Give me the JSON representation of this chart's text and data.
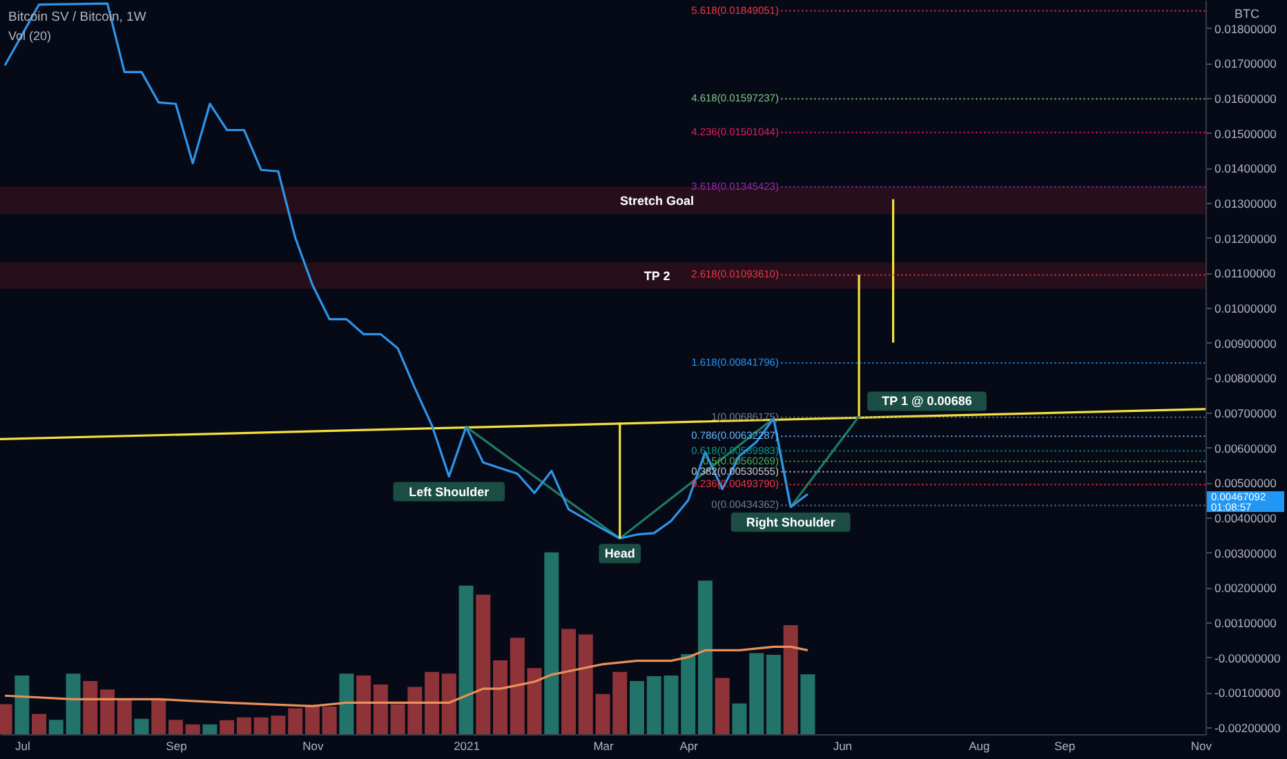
{
  "chart_data": {
    "type": "line",
    "title": "Bitcoin SV / Bitcoin, 1W",
    "annotations": [
      "Vol (20)",
      "BTC",
      "0.00467092 01:08:57",
      {
        "text": "Left Shoulder",
        "x": "2020-12-28",
        "y": 0.00517
      },
      {
        "text": "Head",
        "x": "2021-03-08",
        "y": 0.0034
      },
      {
        "text": "Right Shoulder",
        "x": "2021-05-17",
        "y": 0.0043
      },
      {
        "text": "TP 1 @ 0.00686",
        "x": "2021-06-14",
        "y": 0.00689
      }
    ],
    "x": [
      "2020-06-29",
      "2020-07-06",
      "2020-07-13",
      "2020-07-20",
      "2020-07-27",
      "2020-08-03",
      "2020-08-10",
      "2020-08-17",
      "2020-08-24",
      "2020-08-31",
      "2020-09-07",
      "2020-09-14",
      "2020-09-21",
      "2020-09-28",
      "2020-10-05",
      "2020-10-12",
      "2020-10-19",
      "2020-10-26",
      "2020-11-02",
      "2020-11-09",
      "2020-11-16",
      "2020-11-23",
      "2020-11-30",
      "2020-12-07",
      "2020-12-14",
      "2020-12-21",
      "2020-12-28",
      "2021-01-04",
      "2021-01-11",
      "2021-01-18",
      "2021-01-25",
      "2021-02-01",
      "2021-02-08",
      "2021-02-15",
      "2021-02-22",
      "2021-03-01",
      "2021-03-08",
      "2021-03-15",
      "2021-03-22",
      "2021-03-29",
      "2021-04-05",
      "2021-04-12",
      "2021-04-19",
      "2021-04-26",
      "2021-05-03",
      "2021-05-10",
      "2021-05-17",
      "2021-05-24"
    ],
    "xlim": [
      "2020-06-27",
      "2021-11-03"
    ],
    "xticks": [
      {
        "value": "2020-07-06",
        "label": "Jul"
      },
      {
        "value": "2020-09-07",
        "label": "Sep"
      },
      {
        "value": "2020-11-02",
        "label": "Nov"
      },
      {
        "value": "2021-01-04",
        "label": "2021"
      },
      {
        "value": "2021-03-01",
        "label": "Mar"
      },
      {
        "value": "2021-04-05",
        "label": "Apr"
      },
      {
        "value": "2021-06-07",
        "label": "Jun"
      },
      {
        "value": "2021-08-02",
        "label": "Aug"
      },
      {
        "value": "2021-09-06",
        "label": "Sep"
      },
      {
        "value": "2021-11-01",
        "label": "Nov"
      }
    ],
    "ylim": [
      -0.0022,
      0.0188
    ],
    "yticks": [
      {
        "value": 0.018,
        "label": "0.01800000"
      },
      {
        "value": 0.017,
        "label": "0.01700000"
      },
      {
        "value": 0.016,
        "label": "0.01600000"
      },
      {
        "value": 0.015,
        "label": "0.01500000"
      },
      {
        "value": 0.014,
        "label": "0.01400000"
      },
      {
        "value": 0.013,
        "label": "0.01300000"
      },
      {
        "value": 0.012,
        "label": "0.01200000"
      },
      {
        "value": 0.011,
        "label": "0.01100000"
      },
      {
        "value": 0.01,
        "label": "0.01000000"
      },
      {
        "value": 0.009,
        "label": "0.00900000"
      },
      {
        "value": 0.008,
        "label": "0.00800000"
      },
      {
        "value": 0.007,
        "label": "0.00700000"
      },
      {
        "value": 0.006,
        "label": "0.00600000"
      },
      {
        "value": 0.005,
        "label": "0.00500000"
      },
      {
        "value": 0.004,
        "label": "0.00400000"
      },
      {
        "value": 0.003,
        "label": "0.00300000"
      },
      {
        "value": 0.002,
        "label": "0.00200000"
      },
      {
        "value": 0.001,
        "label": "0.00100000"
      },
      {
        "value": 0,
        "label": "-0.00000000"
      },
      {
        "value": -0.001,
        "label": "-0.00100000"
      },
      {
        "value": -0.002,
        "label": "-0.00200000"
      }
    ],
    "bands": [
      {
        "axis": "y",
        "from": 0.01267,
        "to": 0.01346,
        "label": "Stretch Goal",
        "color": "#2a0f1c"
      },
      {
        "axis": "y",
        "from": 0.01054,
        "to": 0.01129,
        "label": "TP 2",
        "color": "#2a0f1c"
      }
    ],
    "ref_lines": [
      {
        "axis": "y",
        "value": 0.01849051,
        "label": "5.618(0.01849051)",
        "color": "#f23645",
        "line_style": "dotted"
      },
      {
        "axis": "y",
        "value": 0.01597237,
        "label": "4.618(0.01597237)",
        "color": "#81c784",
        "line_style": "dotted"
      },
      {
        "axis": "y",
        "value": 0.01501044,
        "label": "4.236(0.01501044)",
        "color": "#e91e63",
        "line_style": "dotted"
      },
      {
        "axis": "y",
        "value": 0.01345423,
        "label": "3.618(0.01345423)",
        "color": "#9c27b0",
        "line_style": "dotted"
      },
      {
        "axis": "y",
        "value": 0.0109361,
        "label": "2.618(0.01093610)",
        "color": "#f23645",
        "line_style": "dotted"
      },
      {
        "axis": "y",
        "value": 0.00841796,
        "label": "1.618(0.00841796)",
        "color": "#2196f3",
        "line_style": "dotted"
      },
      {
        "axis": "y",
        "value": 0.00686175,
        "label": "1(0.00686175)",
        "color": "#787b86",
        "line_style": "dotted"
      },
      {
        "axis": "y",
        "value": 0.00632287,
        "label": "0.786(0.00632287)",
        "color": "#64b5f6",
        "line_style": "dotted"
      },
      {
        "axis": "y",
        "value": 0.00589983,
        "label": "0.618(0.00589983)",
        "color": "#089981",
        "line_style": "dotted"
      },
      {
        "axis": "y",
        "value": 0.00560269,
        "label": "0.5(0.00560269)",
        "color": "#4caf50",
        "line_style": "dotted"
      },
      {
        "axis": "y",
        "value": 0.00530555,
        "label": "0.382(0.00530555)",
        "color": "#c8c8c8",
        "line_style": "dotted"
      },
      {
        "axis": "y",
        "value": 0.0049379,
        "label": "0.236(0.00493790)",
        "color": "#f23645",
        "line_style": "dotted"
      },
      {
        "axis": "y",
        "value": 0.00434362,
        "label": "0(0.00434362)",
        "color": "#787b86",
        "line_style": "dotted"
      }
    ],
    "series": [
      {
        "type": "bar",
        "base": [
          -0.0022,
          -0.0022,
          -0.0022,
          -0.0022,
          -0.0022,
          -0.0022,
          -0.0022,
          -0.0022,
          -0.0022,
          -0.0022,
          -0.0022,
          -0.0022,
          -0.0022,
          -0.0022,
          -0.0022,
          -0.0022,
          -0.0022,
          -0.0022,
          -0.0022,
          -0.0022,
          -0.0022,
          -0.0022,
          -0.0022,
          -0.0022,
          -0.0022,
          -0.0022,
          -0.0022,
          -0.0022,
          -0.0022,
          -0.0022,
          -0.0022,
          -0.0022,
          -0.0022,
          -0.0022,
          -0.0022,
          -0.0022,
          -0.0022,
          -0.0022,
          -0.0022,
          -0.0022,
          -0.0022,
          -0.0022,
          -0.0022,
          -0.0022,
          -0.0022,
          -0.0022,
          -0.0022,
          -0.0022
        ],
        "values": [
          0.00086,
          0.00168,
          0.00058,
          0.00041,
          0.00173,
          0.00152,
          0.00128,
          0.00098,
          0.00044,
          0.001,
          0.00041,
          0.00028,
          0.00028,
          0.0004,
          0.00048,
          0.00048,
          0.00053,
          0.00074,
          0.00084,
          0.00079,
          0.00173,
          0.00168,
          0.00142,
          0.00086,
          0.00135,
          0.00178,
          0.00173,
          0.00425,
          0.00399,
          0.00211,
          0.00276,
          0.00189,
          0.0052,
          0.00301,
          0.00285,
          0.00115,
          0.00178,
          0.00152,
          0.00166,
          0.00168,
          0.00229,
          0.00439,
          0.00161,
          0.00088,
          0.00232,
          0.00227,
          0.00312,
          0.00171
        ],
        "colors": [
          "#8e3338",
          "#22736a",
          "#8e3338",
          "#22736a",
          "#22736a",
          "#8e3338",
          "#8e3338",
          "#8e3338",
          "#22736a",
          "#8e3338",
          "#8e3338",
          "#8e3338",
          "#22736a",
          "#8e3338",
          "#8e3338",
          "#8e3338",
          "#8e3338",
          "#8e3338",
          "#8e3338",
          "#8e3338",
          "#22736a",
          "#8e3338",
          "#8e3338",
          "#8e3338",
          "#8e3338",
          "#8e3338",
          "#8e3338",
          "#22736a",
          "#8e3338",
          "#8e3338",
          "#8e3338",
          "#8e3338",
          "#22736a",
          "#8e3338",
          "#8e3338",
          "#8e3338",
          "#8e3338",
          "#22736a",
          "#22736a",
          "#22736a",
          "#22736a",
          "#22736a",
          "#8e3338",
          "#22736a",
          "#22736a",
          "#22736a",
          "#8e3338",
          "#22736a"
        ]
      },
      {
        "type": "line",
        "color": "#e8905a",
        "x": [
          "2020-06-29",
          "2020-07-27",
          "2020-08-31",
          "2020-09-28",
          "2020-11-02",
          "2020-11-16",
          "2020-12-28",
          "2021-01-04",
          "2021-01-11",
          "2021-01-18",
          "2021-01-25",
          "2021-02-01",
          "2021-02-08",
          "2021-02-15",
          "2021-03-01",
          "2021-03-15",
          "2021-03-29",
          "2021-04-05",
          "2021-04-12",
          "2021-04-26",
          "2021-05-10",
          "2021-05-17",
          "2021-05-24"
        ],
        "values": [
          -0.0011,
          -0.0012,
          -0.0012,
          -0.0013,
          -0.0014,
          -0.0013,
          -0.0013,
          -0.0011,
          -0.0009,
          -0.0009,
          -0.0008,
          -0.0007,
          -0.0005,
          -0.0004,
          -0.0002,
          -0.0001,
          -0.0001,
          0,
          0.0002,
          0.0002,
          0.0003,
          0.0003,
          0.0002
        ]
      },
      {
        "type": "line",
        "color": "#f5e13b",
        "x": [
          "2020-06-27",
          "2021-11-03"
        ],
        "values": [
          0.00624,
          0.0071
        ]
      },
      {
        "type": "line",
        "color": "#1e7a63",
        "x": [
          "2021-01-04",
          "2021-03-08",
          "2021-05-10",
          "2021-05-17",
          "2021-06-14"
        ],
        "values": [
          0.00659,
          0.0034,
          0.00683,
          0.0043,
          0.00689
        ]
      },
      {
        "type": "line",
        "color": "#2f95e8",
        "values": [
          0.01693,
          null,
          0.01867,
          null,
          null,
          null,
          0.0187,
          0.01674,
          0.01674,
          0.01587,
          0.01583,
          0.01413,
          0.01583,
          0.01508,
          0.01508,
          0.01394,
          0.0139,
          0.012,
          0.01066,
          0.00967,
          0.00967,
          0.00924,
          0.00924,
          0.00884,
          0.0077,
          0.00663,
          0.00517,
          0.00659,
          0.00557,
          0.00541,
          0.00525,
          0.0047,
          0.00533,
          0.00423,
          0.00395,
          0.00367,
          0.0034,
          0.00351,
          0.00355,
          0.0039,
          0.00449,
          0.00587,
          0.00481,
          0.00576,
          0.00616,
          0.00683,
          0.0043,
          0.00467
        ]
      },
      {
        "type": "line",
        "color": "#f5e13b",
        "x": [
          "2021-03-08",
          "2021-03-08"
        ],
        "values": [
          0.0034,
          0.00671
        ]
      },
      {
        "type": "line",
        "color": "#f5e13b",
        "x": [
          "2021-06-14",
          "2021-06-14"
        ],
        "values": [
          0.00689,
          0.01094
        ]
      },
      {
        "type": "line",
        "color": "#f5e13b",
        "x": [
          "2021-06-28",
          "2021-06-28"
        ],
        "values": [
          0.009,
          0.0131
        ]
      }
    ]
  }
}
